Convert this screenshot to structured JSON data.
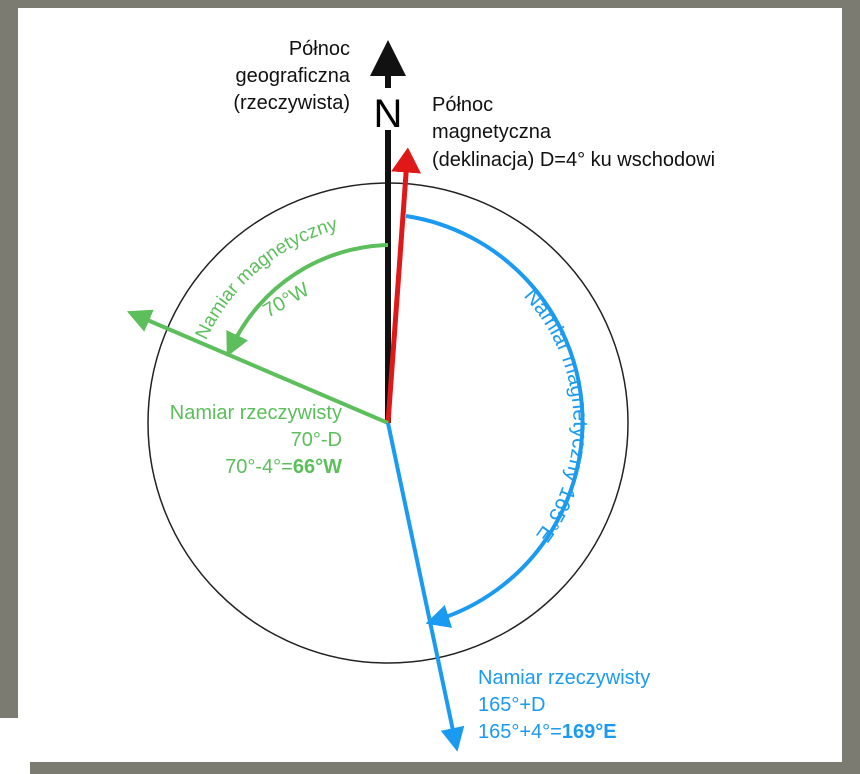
{
  "north_geographic": [
    "Północ",
    "geograficzna",
    "(rzeczywista)"
  ],
  "north_symbol": "N",
  "north_magnetic": [
    "Północ",
    "magnetyczna",
    "(deklinacja) D=4° ku wschodowi"
  ],
  "green": {
    "arc_label": "Namiar magnetyczny",
    "arc_value": "70°W",
    "true_bearing": [
      "Namiar rzeczywisty",
      "70°-D"
    ],
    "calc": "70°-4°=",
    "result": "66°W"
  },
  "blue": {
    "arc_label": "Namiar magnetyczny 165°E",
    "true_bearing": [
      "Namiar rzeczywisty",
      "165°+D"
    ],
    "calc": "165°+4°=",
    "result": "169°E"
  }
}
